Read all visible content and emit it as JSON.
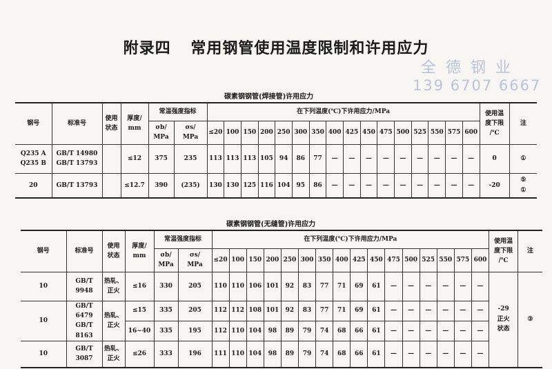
{
  "title": {
    "appendix": "附录四",
    "text": "常用钢管使用温度限制和许用应力"
  },
  "watermark": {
    "company": "全德钢业",
    "phone": "139 6707 6667"
  },
  "headers": {
    "steel": "钢号",
    "standard": "标准号",
    "state": "使用\n状态",
    "thickness": "厚度/\nmm",
    "strength": "常温强度指标",
    "sigma_b": "σb/\nMPa",
    "sigma_s": "σs/\nMPa",
    "allowable": "在下列温度(℃)下许用应力/MPa",
    "min_temp": "使用温\n度下限\n/℃",
    "note": "注"
  },
  "table1": {
    "caption": "碳素钢钢管(焊接管)许用应力",
    "temps": [
      "≤20",
      "100",
      "150",
      "200",
      "250",
      "300",
      "350",
      "400",
      "425",
      "450",
      "475",
      "500",
      "525",
      "550",
      "575",
      "600"
    ],
    "rows": [
      {
        "steel": "Q235 A\nQ235 B",
        "standard": "GB/T 14980\nGB/T 13793",
        "state": "",
        "thickness": "≤12",
        "sb": "375",
        "ss": "235",
        "values": [
          "113",
          "113",
          "113",
          "105",
          "94",
          "86",
          "77",
          "—",
          "—",
          "—",
          "—",
          "—",
          "—",
          "—",
          "—",
          "—"
        ],
        "min_temp": "0",
        "note": "①"
      },
      {
        "steel": "20",
        "standard": "GB/T 13793",
        "state": "",
        "thickness": "≤12.7",
        "sb": "390",
        "ss": "(235)",
        "values": [
          "130",
          "130",
          "125",
          "116",
          "104",
          "95",
          "86",
          "—",
          "—",
          "—",
          "—",
          "—",
          "—",
          "—",
          "—",
          "—"
        ],
        "min_temp": "-20",
        "note": "⑤\n①"
      }
    ]
  },
  "table2": {
    "caption": "碳素钢钢管(无缝管)许用应力",
    "temps": [
      "≤20",
      "100",
      "150",
      "200",
      "250",
      "300",
      "350",
      "400",
      "425",
      "450",
      "475",
      "500",
      "525",
      "550",
      "575",
      "600"
    ],
    "min_temp": "-29\n正火\n状态",
    "note": "③",
    "rows": [
      {
        "steel": "10",
        "standard": "GB/T 9948",
        "state": "热轧、\n正火",
        "thickness": "≤16",
        "sb": "330",
        "ss": "205",
        "values": [
          "110",
          "110",
          "106",
          "101",
          "92",
          "83",
          "77",
          "71",
          "69",
          "61",
          "—",
          "—",
          "—",
          "—",
          "—",
          "—"
        ]
      },
      {
        "steel": "10",
        "standard": "GB/T 6479\nGB/T 8163",
        "state": "热轧、\n正火",
        "thickness": "≤15",
        "sb": "335",
        "ss": "205",
        "values": [
          "112",
          "112",
          "108",
          "101",
          "92",
          "83",
          "77",
          "71",
          "69",
          "61",
          "—",
          "—",
          "—",
          "—",
          "—",
          "—"
        ]
      },
      {
        "thickness": "16~40",
        "sb": "335",
        "ss": "195",
        "values": [
          "112",
          "110",
          "104",
          "98",
          "89",
          "79",
          "74",
          "68",
          "66",
          "61",
          "—",
          "—",
          "—",
          "—",
          "—",
          "—"
        ]
      },
      {
        "steel": "10",
        "standard": "GB/T 3087",
        "state": "热轧、\n正火",
        "thickness": "≤26",
        "sb": "333",
        "ss": "196",
        "values": [
          "111",
          "110",
          "104",
          "98",
          "89",
          "79",
          "74",
          "68",
          "66",
          "61",
          "—",
          "—",
          "—",
          "—",
          "—",
          "—"
        ]
      }
    ]
  }
}
